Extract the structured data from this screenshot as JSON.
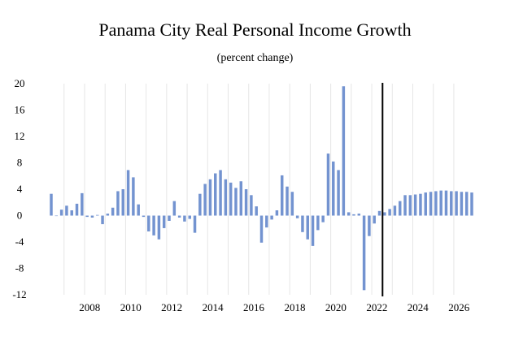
{
  "chart_data": {
    "type": "bar",
    "title": "Panama City Real Personal Income Growth",
    "subtitle": "(percent change)",
    "xlabel": "",
    "ylabel": "",
    "ylim": [
      -12,
      20
    ],
    "yticks": [
      20,
      16,
      12,
      8,
      4,
      0,
      -4,
      -8,
      -12
    ],
    "xticks": [
      {
        "label": "2008",
        "x": 2008
      },
      {
        "label": "2010",
        "x": 2010
      },
      {
        "label": "2012",
        "x": 2012
      },
      {
        "label": "2014",
        "x": 2014
      },
      {
        "label": "2016",
        "x": 2016
      },
      {
        "label": "2018",
        "x": 2018
      },
      {
        "label": "2020",
        "x": 2020
      },
      {
        "label": "2022",
        "x": 2022
      },
      {
        "label": "2024",
        "x": 2024
      },
      {
        "label": "2026",
        "x": 2026
      }
    ],
    "grid": "vertical",
    "bar_color": "#7393d0",
    "forecast_divider_x": 2022.5,
    "series": [
      {
        "x": [
          2006.25,
          2006.5,
          2006.75,
          2007.0,
          2007.25,
          2007.5,
          2007.75,
          2008.0,
          2008.25,
          2008.5,
          2008.75,
          2009.0,
          2009.25,
          2009.5,
          2009.75,
          2010.0,
          2010.25,
          2010.5,
          2010.75,
          2011.0,
          2011.25,
          2011.5,
          2011.75,
          2012.0,
          2012.25,
          2012.5,
          2012.75,
          2013.0,
          2013.25,
          2013.5,
          2013.75,
          2014.0,
          2014.25,
          2014.5,
          2014.75,
          2015.0,
          2015.25,
          2015.5,
          2015.75,
          2016.0,
          2016.25,
          2016.5,
          2016.75,
          2017.0,
          2017.25,
          2017.5,
          2017.75,
          2018.0,
          2018.25,
          2018.5,
          2018.75,
          2019.0,
          2019.25,
          2019.5,
          2019.75,
          2020.0,
          2020.25,
          2020.5,
          2020.75,
          2021.0,
          2021.25,
          2021.5,
          2021.75,
          2022.0,
          2022.25,
          2022.5,
          2022.75,
          2023.0,
          2023.25,
          2023.5,
          2023.75,
          2024.0,
          2024.25,
          2024.5,
          2024.75,
          2025.0,
          2025.25,
          2025.5,
          2025.75,
          2026.0,
          2026.25,
          2026.5,
          2026.75
        ],
        "values": [
          3.3,
          0.0,
          0.9,
          1.5,
          0.8,
          1.8,
          3.4,
          -0.2,
          -0.3,
          0.1,
          -1.3,
          0.3,
          1.2,
          3.7,
          4.0,
          6.9,
          5.8,
          1.7,
          -0.2,
          -2.4,
          -3.0,
          -3.6,
          -1.9,
          -0.8,
          2.2,
          -0.3,
          -0.9,
          -0.5,
          -2.6,
          3.3,
          4.8,
          5.5,
          6.4,
          6.9,
          5.5,
          5.0,
          4.2,
          5.2,
          4.0,
          3.1,
          1.4,
          -4.1,
          -1.8,
          -0.6,
          0.8,
          6.1,
          4.4,
          3.6,
          -0.4,
          -2.5,
          -3.6,
          -4.6,
          -2.2,
          -1.0,
          9.4,
          8.2,
          6.9,
          19.6,
          0.5,
          0.2,
          0.3,
          -11.3,
          -3.1,
          -1.2,
          0.7,
          0.5,
          1.0,
          1.5,
          2.2,
          3.1,
          3.1,
          3.2,
          3.3,
          3.5,
          3.6,
          3.7,
          3.8,
          3.8,
          3.7,
          3.7,
          3.6,
          3.6,
          3.5
        ]
      }
    ]
  }
}
